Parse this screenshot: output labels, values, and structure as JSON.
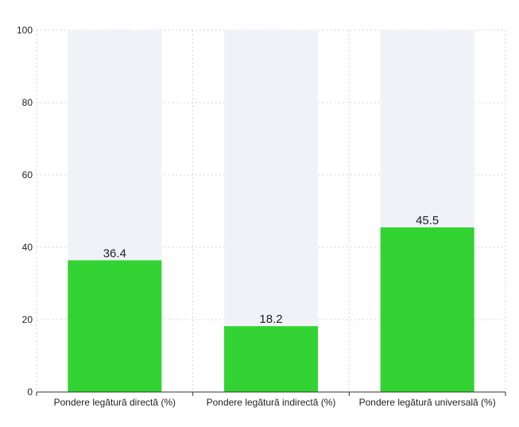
{
  "chart_data": {
    "type": "bar",
    "categories": [
      "Pondere legătură directă (%)",
      "Pondere legătură indirectă (%)",
      "Pondere legătură universală (%)"
    ],
    "values": [
      36.4,
      18.2,
      45.5
    ],
    "ylim": [
      0,
      100
    ],
    "yticks": [
      "0",
      "20",
      "40",
      "60",
      "80",
      "100"
    ],
    "title": "",
    "xlabel": "",
    "ylabel": "",
    "grid": true,
    "bar_color": "#32d332",
    "background_bar_color": "#f1f1f8",
    "grid_color": "#d5d5d5"
  }
}
